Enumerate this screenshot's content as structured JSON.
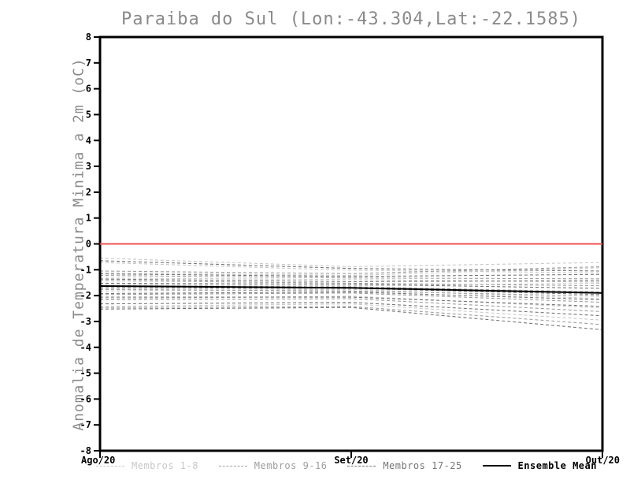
{
  "title": "Paraiba do Sul (Lon:-43.304,Lat:-22.1585)",
  "y_axis": {
    "label": "Anomalia de Temperatura Minima a 2m (oC)",
    "min": -8,
    "max": 8,
    "step": 1
  },
  "x_axis": {
    "labels": [
      "Ago/20",
      "Set/20",
      "Out/20"
    ]
  },
  "colors": {
    "zero_line": "#f25252",
    "frame": "#000000",
    "title_text": "#8a8a8a",
    "axis_text": "#000000",
    "members_1_8": "#c8c8c8",
    "members_9_16": "#9e9e9e",
    "members_17_25": "#757575",
    "ensemble_mean": "#000000"
  },
  "legend": [
    {
      "label": "Membros 1-8",
      "style": "dashed",
      "color": "#c8c8c8"
    },
    {
      "label": "Membros 9-16",
      "style": "dashed",
      "color": "#9e9e9e"
    },
    {
      "label": "Membros 17-25",
      "style": "dashed",
      "color": "#757575"
    },
    {
      "label": "Ensemble Mean",
      "style": "solid",
      "color": "#000000"
    }
  ],
  "chart_data": {
    "type": "line",
    "title": "Paraiba do Sul (Lon:-43.304,Lat:-22.1585)",
    "ylabel": "Anomalia de Temperatura Minima a 2m (oC)",
    "x": [
      "Ago/20",
      "Set/20",
      "Out/20"
    ],
    "ylim": [
      -8,
      8
    ],
    "ytick_step": 1,
    "grid": false,
    "zero_reference_line": 0,
    "legend_position": "bottom",
    "series": [
      {
        "name": "Membros 1-8",
        "style": "dashed",
        "color": "#c8c8c8",
        "members": [
          [
            -0.55,
            -0.88,
            -0.72
          ],
          [
            -0.72,
            -1.02,
            -1.12
          ],
          [
            -1.12,
            -1.22,
            -0.92
          ],
          [
            -1.32,
            -1.38,
            -1.48
          ],
          [
            -1.57,
            -1.62,
            -1.52
          ],
          [
            -1.82,
            -1.76,
            -2.12
          ],
          [
            -2.12,
            -2.02,
            -2.48
          ],
          [
            -2.42,
            -2.32,
            -2.95
          ]
        ]
      },
      {
        "name": "Membros 9-16",
        "style": "dashed",
        "color": "#9e9e9e",
        "members": [
          [
            -1.05,
            -1.15,
            -0.88
          ],
          [
            -1.22,
            -1.32,
            -1.35
          ],
          [
            -1.42,
            -1.52,
            -1.62
          ],
          [
            -1.62,
            -1.66,
            -1.86
          ],
          [
            -1.76,
            -1.82,
            -2.02
          ],
          [
            -1.96,
            -1.9,
            -2.26
          ],
          [
            -2.16,
            -2.12,
            -2.62
          ],
          [
            -2.46,
            -2.42,
            -3.12
          ]
        ]
      },
      {
        "name": "Membros 17-25",
        "style": "dashed",
        "color": "#757575",
        "members": [
          [
            -0.65,
            -0.95,
            -1.05
          ],
          [
            -1.16,
            -1.26,
            -1.18
          ],
          [
            -1.36,
            -1.46,
            -1.42
          ],
          [
            -1.52,
            -1.56,
            -1.72
          ],
          [
            -1.7,
            -1.72,
            -1.96
          ],
          [
            -1.92,
            -1.86,
            -2.16
          ],
          [
            -2.06,
            -2.06,
            -2.42
          ],
          [
            -2.32,
            -2.26,
            -2.78
          ],
          [
            -2.52,
            -2.46,
            -3.32
          ]
        ]
      },
      {
        "name": "Ensemble Mean",
        "style": "solid",
        "color": "#000000",
        "values": [
          -1.63,
          -1.7,
          -1.9
        ]
      }
    ]
  }
}
